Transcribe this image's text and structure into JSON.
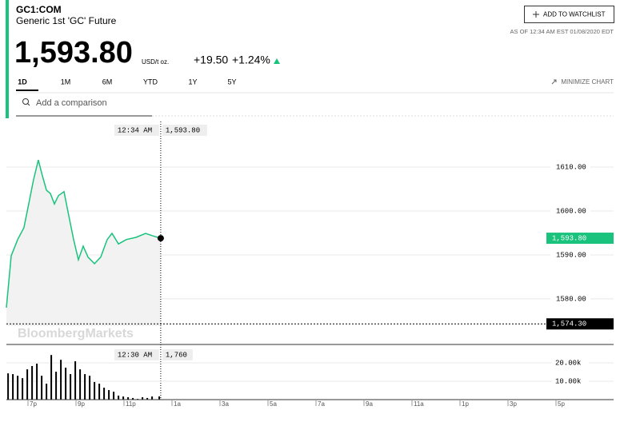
{
  "header": {
    "ticker": "GC1:COM",
    "name": "Generic 1st 'GC' Future",
    "price": "1,593.80",
    "unit": "USD/t oz.",
    "change": "+19.50",
    "change_pct": "+1.24%",
    "tabs": [
      "1D",
      "1M",
      "6M",
      "YTD",
      "1Y",
      "5Y"
    ],
    "minimize": "MINIMIZE CHART",
    "search_placeholder": "Add a comparison",
    "watchlist": "ADD TO WATCHLIST",
    "as_of": "AS OF 12:34 AM EST 01/08/2020 EDT",
    "watermark": "BloombergMarkets"
  },
  "chart_data": [
    {
      "type": "line",
      "color": "#19c37d",
      "x": [
        18.1,
        18.3,
        18.57,
        18.83,
        19.03,
        19.23,
        19.43,
        19.6,
        19.77,
        19.93,
        20.1,
        20.27,
        20.5,
        20.7,
        20.9,
        21.1,
        21.3,
        21.5,
        21.77,
        22.03,
        22.3,
        22.5,
        22.77,
        23.1,
        23.5,
        23.9,
        24.17,
        24.53
      ],
      "values": [
        1578.0,
        1589.8,
        1593.5,
        1596.2,
        1601.6,
        1607.1,
        1611.6,
        1608.0,
        1604.7,
        1604.0,
        1601.6,
        1603.5,
        1604.4,
        1598.9,
        1593.5,
        1588.9,
        1592.0,
        1589.5,
        1588.0,
        1589.5,
        1593.5,
        1594.9,
        1592.5,
        1593.5,
        1594.0,
        1594.9,
        1594.4,
        1593.8
      ],
      "xlim": [
        18.1,
        43.4
      ],
      "ylim": [
        1573.8,
        1621.1
      ],
      "yticks": [
        {
          "value": 1580,
          "label": "1580.00"
        },
        {
          "value": 1590,
          "label": "1590.00"
        },
        {
          "value": 1600,
          "label": "1600.00"
        },
        {
          "value": 1610,
          "label": "1610.00"
        }
      ],
      "grid": true,
      "markers": [
        {
          "value": 1593.8,
          "label": "1,593.80",
          "color": "#19c37d"
        },
        {
          "value": 1574.3,
          "label": "1,574.30",
          "color": "#000000"
        }
      ],
      "crosshair": {
        "x": 24.53,
        "label": "12:34 AM",
        "value": 1593.8,
        "value_label": "1,593.80"
      }
    },
    {
      "type": "bar",
      "color": "#000000",
      "x": [
        18.17,
        18.37,
        18.57,
        18.77,
        18.97,
        19.17,
        19.37,
        19.57,
        19.77,
        19.97,
        20.17,
        20.37,
        20.57,
        20.77,
        20.97,
        21.17,
        21.37,
        21.57,
        21.77,
        21.97,
        22.17,
        22.37,
        22.57,
        22.77,
        22.97,
        23.17,
        23.37,
        23.57,
        23.77,
        23.97,
        24.17,
        24.47
      ],
      "values": [
        14300,
        13900,
        13000,
        11700,
        16500,
        18300,
        19600,
        13000,
        8700,
        24300,
        15200,
        21700,
        17400,
        13900,
        20900,
        16500,
        13900,
        13000,
        9600,
        8700,
        6500,
        5200,
        4300,
        2200,
        1700,
        1300,
        900,
        400,
        1300,
        900,
        1700,
        1760
      ],
      "xlim": [
        18.1,
        43.4
      ],
      "ylim": [
        0,
        29600
      ],
      "yticks": [
        {
          "value": 10000,
          "label": "10.00k"
        },
        {
          "value": 20000,
          "label": "20.00k"
        }
      ],
      "xticks": [
        {
          "value": 19,
          "label": "7p"
        },
        {
          "value": 21,
          "label": "9p"
        },
        {
          "value": 23,
          "label": "11p"
        },
        {
          "value": 25,
          "label": "1a"
        },
        {
          "value": 27,
          "label": "3a"
        },
        {
          "value": 29,
          "label": "5a"
        },
        {
          "value": 31,
          "label": "7a"
        },
        {
          "value": 33,
          "label": "9a"
        },
        {
          "value": 35,
          "label": "11a"
        },
        {
          "value": 37,
          "label": "1p"
        },
        {
          "value": 39,
          "label": "3p"
        },
        {
          "value": 41,
          "label": "5p"
        }
      ],
      "crosshair": {
        "label": "12:30 AM",
        "value": 1760,
        "value_label": "1,760"
      }
    }
  ]
}
